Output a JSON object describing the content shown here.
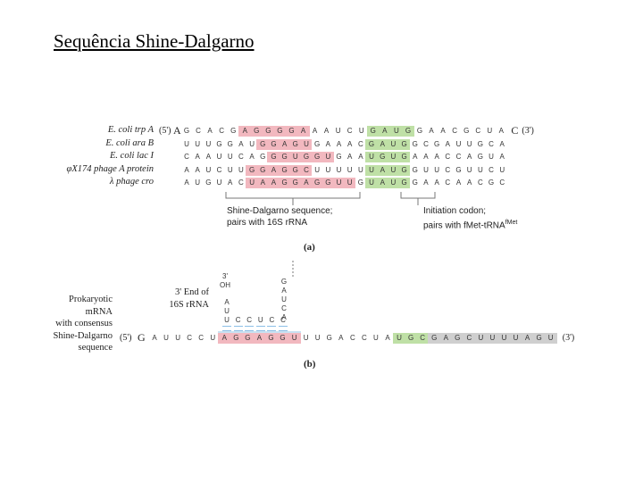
{
  "title": "Sequência Shine-Dalgarno",
  "panel_a": {
    "label": "(a)",
    "rows": [
      {
        "organism": "E. coli trp A",
        "five_prime": "(5')",
        "first": "A",
        "seq": "GCACGAGGGGAAAUCUGAUGGAACGCUA",
        "last": "C",
        "three_prime": "(3')"
      },
      {
        "organism": "E. coli ara B",
        "five_prime": "",
        "first": "",
        "seq": "UUUGGAUGGAGUGAAACGAUGGCGAUUGCA",
        "last": "",
        "three_prime": ""
      },
      {
        "organism": "E. coli lac I",
        "five_prime": "",
        "first": "",
        "seq": "CAAUUCAGGGUGGUGAAUGUGAAACCAGUA",
        "last": "",
        "three_prime": ""
      },
      {
        "organism": "φX174 phage A protein",
        "five_prime": "",
        "first": "",
        "seq": "AAUCUUGGAGGCUUUUUUAUGGUUCGUUCU",
        "last": "",
        "three_prime": ""
      },
      {
        "organism": "λ phage cro",
        "five_prime": "",
        "first": "",
        "seq": "AUGUACUAAGGAGGUUGUAUGGAACAACGC",
        "last": "",
        "three_prime": ""
      }
    ],
    "sd_caption_1": "Shine-Dalgarno sequence;",
    "sd_caption_2": "pairs with 16S rRNA",
    "init_caption_1": "Initiation codon;",
    "init_caption_2": "pairs with fMet-tRNA",
    "init_sup": "fMet"
  },
  "panel_b": {
    "label": "(b)",
    "left_label": [
      "Prokaryotic",
      "mRNA",
      "with consensus",
      "Shine-Dalgarno",
      "sequence"
    ],
    "rrna_label": [
      "3' End of",
      "16S rRNA"
    ],
    "rrna_three_prime": [
      "3'",
      "OH"
    ],
    "rrna_left_column": [
      "A",
      "U"
    ],
    "rrna_right_column": [
      "G",
      "A",
      "U",
      "C",
      "A"
    ],
    "rrna_paired": "UCCUCC",
    "five_prime": "(5')",
    "mrna_first": "G",
    "mrna_seq": "AUUCCUAGGAGGUUUGACCUAUGCGAGCUUUUAGU",
    "three_prime": "(3')"
  },
  "colors": {
    "sd_highlight": "#f2b8bf",
    "start_codon": "#bfe0a6",
    "rrna_pairing": "#c9e2f2",
    "coding": "#cfcfcf"
  }
}
